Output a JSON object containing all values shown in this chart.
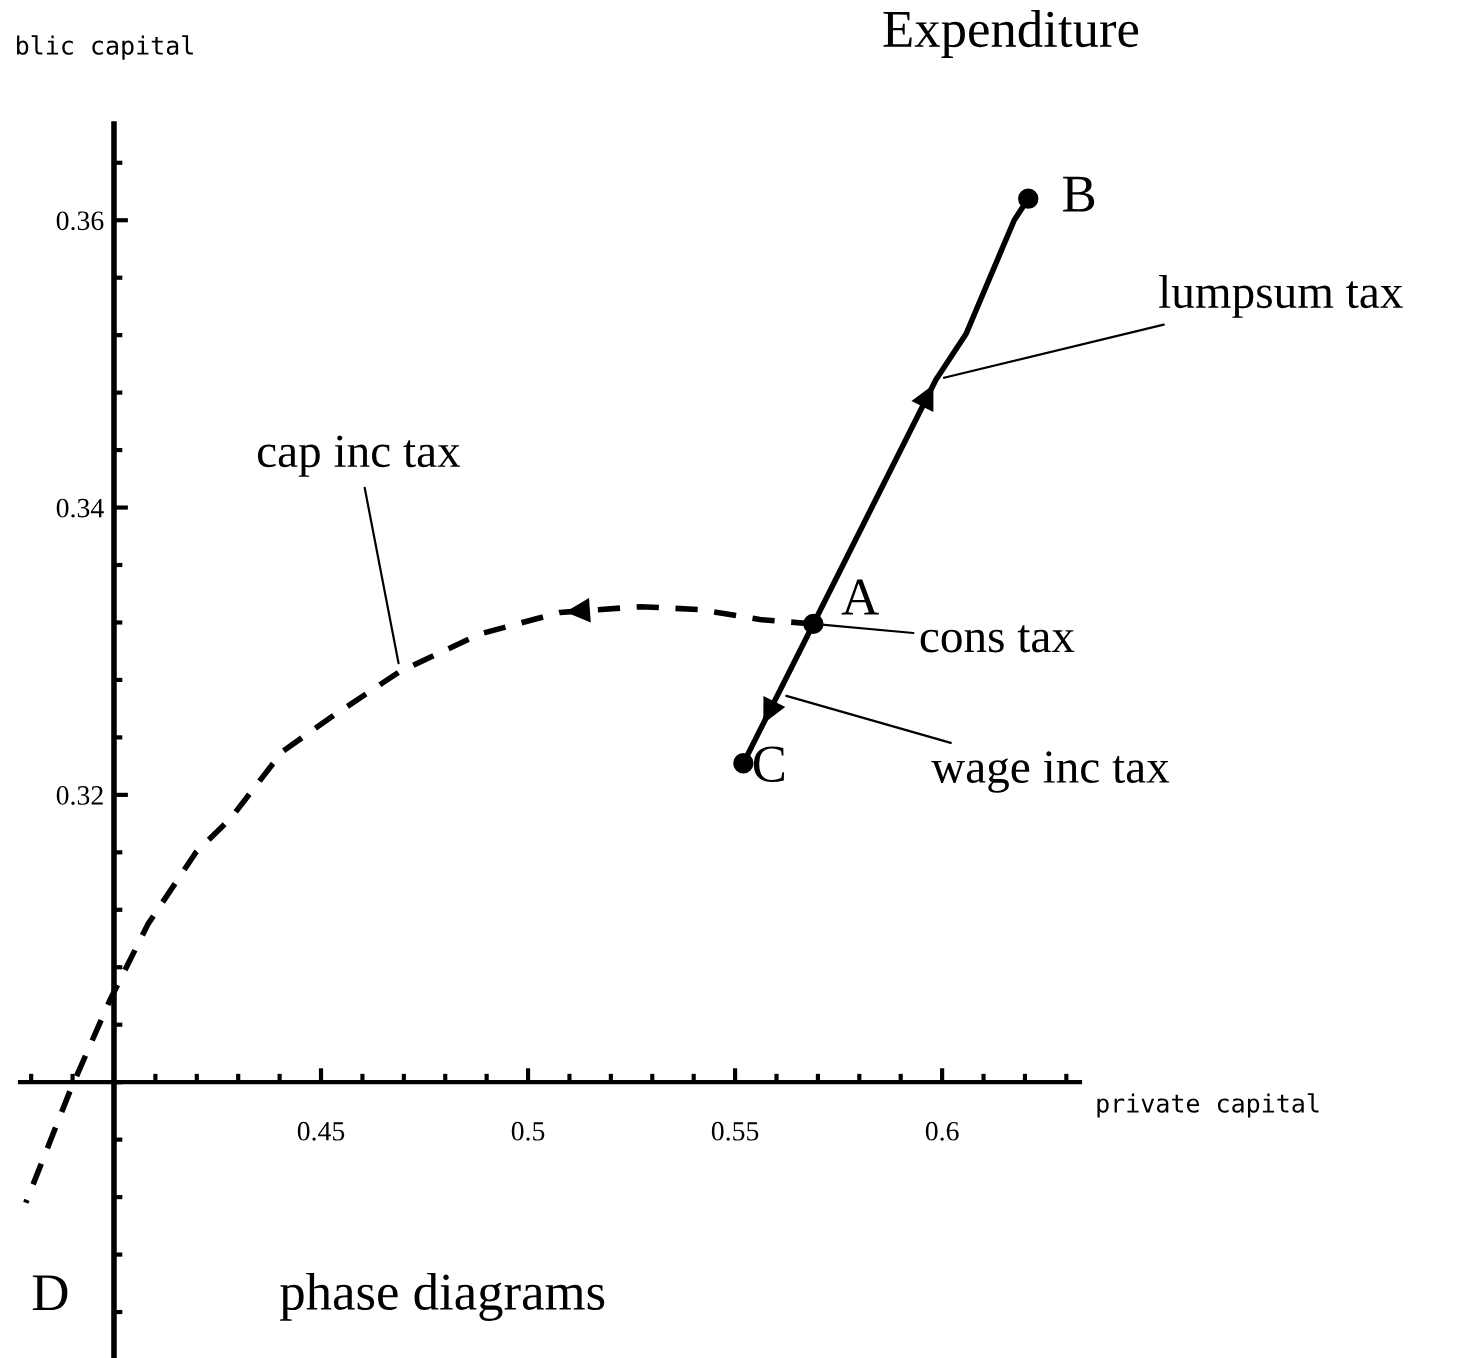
{
  "chart_data": {
    "type": "line",
    "title": "Expenditure",
    "xlabel": "private capital",
    "ylabel": "blic capital",
    "xlim": [
      0.3773,
      0.6333
    ],
    "ylim": [
      0.2808,
      0.3667
    ],
    "xticks": [
      0.45,
      0.5,
      0.55,
      0.6
    ],
    "yticks": [
      0.32,
      0.34,
      0.36
    ],
    "grid": false,
    "legend": false,
    "series": [
      {
        "name": "lumpsum tax",
        "color": "#000000",
        "line_style": "solid",
        "x": [
          0.5689,
          0.5985,
          0.6058,
          0.6174,
          0.6208
        ],
        "values": [
          0.3319,
          0.3489,
          0.3521,
          0.36,
          0.3615
        ]
      },
      {
        "name": "wage inc tax",
        "color": "#000000",
        "line_style": "solid",
        "x": [
          0.5689,
          0.552
        ],
        "values": [
          0.3319,
          0.3222
        ]
      },
      {
        "name": "cap inc tax",
        "color": "#000000",
        "line_style": "dashed",
        "x": [
          0.5689,
          0.556,
          0.5415,
          0.5271,
          0.5077,
          0.4884,
          0.4691,
          0.4524,
          0.4406,
          0.4283,
          0.4198,
          0.4082,
          0.399,
          0.3894,
          0.3787
        ],
        "values": [
          0.3319,
          0.3322,
          0.3329,
          0.3331,
          0.3327,
          0.3312,
          0.3286,
          0.3254,
          0.323,
          0.3184,
          0.316,
          0.311,
          0.3057,
          0.2994,
          0.2916
        ]
      },
      {
        "type": "scatter",
        "color": "#000000",
        "marker": "circle",
        "x": [
          0.5689,
          0.6208,
          0.552
        ],
        "values": [
          0.3319,
          0.3615,
          0.3222
        ]
      }
    ],
    "annotations": [
      {
        "text": "A",
        "x": 0.5689,
        "y": 0.3319
      },
      {
        "text": "B",
        "x": 0.6208,
        "y": 0.3615
      },
      {
        "text": "C",
        "x": 0.552,
        "y": 0.3222
      },
      {
        "text": "D",
        "x": 0.3787,
        "y": 0.2916
      },
      {
        "text": "cons tax",
        "x": 0.5689,
        "y": 0.3319
      },
      "phase diagrams"
    ]
  }
}
